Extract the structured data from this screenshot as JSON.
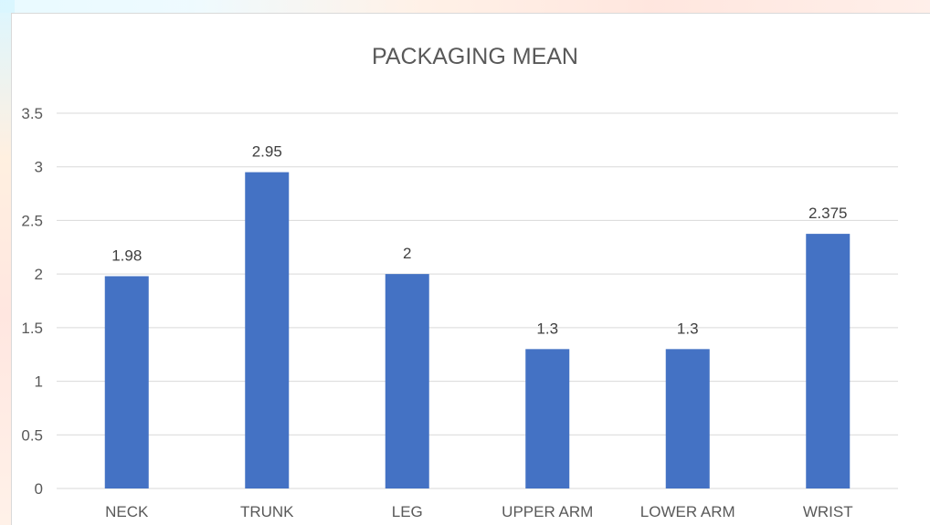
{
  "chart_data": {
    "type": "bar",
    "title": "PACKAGING MEAN",
    "categories": [
      "NECK",
      "TRUNK",
      "LEG",
      "UPPER ARM",
      "LOWER ARM",
      "WRIST"
    ],
    "values": [
      1.98,
      2.95,
      2,
      1.3,
      1.3,
      2.375
    ],
    "data_labels": [
      "1.98",
      "2.95",
      "2",
      "1.3",
      "1.3",
      "2.375"
    ],
    "y_ticks": [
      "0",
      "0.5",
      "1",
      "1.5",
      "2",
      "2.5",
      "3",
      "3.5"
    ],
    "ylim": [
      0,
      3.5
    ],
    "xlabel": "",
    "ylabel": "",
    "grid": true,
    "legend": "none",
    "bar_color": "#4472c4",
    "grid_color": "#d9d9d9"
  }
}
